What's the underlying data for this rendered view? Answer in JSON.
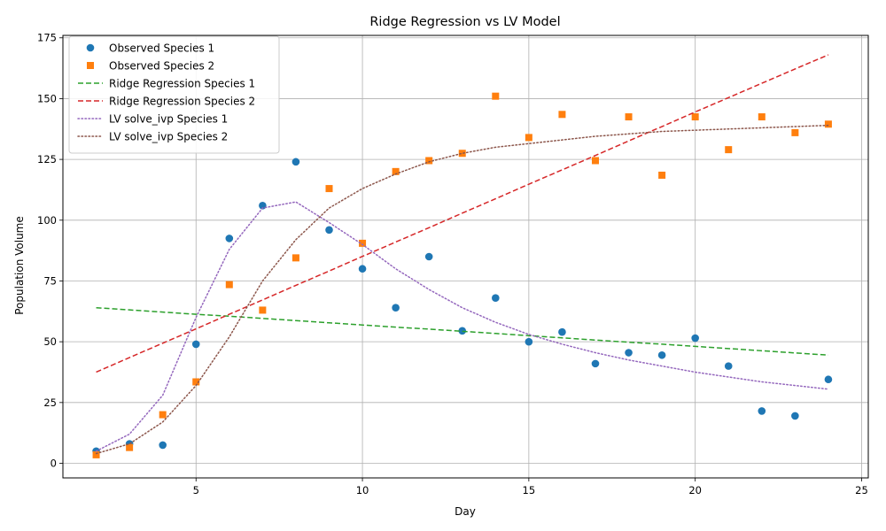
{
  "chart_data": {
    "type": "line",
    "title": "Ridge Regression vs LV Model",
    "xlabel": "Day",
    "ylabel": "Population Volume",
    "xlim": [
      1,
      25.2
    ],
    "ylim": [
      -6,
      176
    ],
    "x_ticks": [
      5,
      10,
      15,
      20,
      25
    ],
    "y_ticks": [
      0,
      25,
      50,
      75,
      100,
      125,
      150,
      175
    ],
    "grid": true,
    "legend_position": "top-left",
    "x": [
      2,
      3,
      4,
      5,
      6,
      7,
      8,
      9,
      10,
      11,
      12,
      13,
      14,
      15,
      16,
      17,
      18,
      19,
      20,
      21,
      22,
      23,
      24
    ],
    "series": [
      {
        "name": "Observed Species 1",
        "kind": "scatter",
        "marker": "circle",
        "color": "#1f77b4",
        "values": [
          5,
          8,
          7.5,
          49,
          92.5,
          106,
          124,
          96,
          80,
          64,
          85,
          54.5,
          68,
          50,
          54,
          41,
          45.5,
          44.5,
          51.5,
          40,
          21.5,
          19.5,
          34.5
        ]
      },
      {
        "name": "Observed Species 2",
        "kind": "scatter",
        "marker": "square",
        "color": "#ff7f0e",
        "values": [
          3.5,
          6.5,
          20,
          33.5,
          73.5,
          63,
          84.5,
          113,
          90.5,
          120,
          124.5,
          127.5,
          151,
          134,
          143.5,
          124.5,
          142.5,
          118.5,
          142.5,
          129,
          142.5,
          136,
          139.5
        ]
      },
      {
        "name": "Ridge Regression Species 1",
        "kind": "line",
        "dash": "dashed",
        "color": "#2ca02c",
        "values": [
          64,
          63.1,
          62.2,
          61.3,
          60.5,
          59.6,
          58.7,
          57.8,
          56.9,
          56,
          55.2,
          54.3,
          53.4,
          52.5,
          51.6,
          50.7,
          49.8,
          49,
          48.1,
          47.2,
          46.3,
          45.4,
          44.5
        ]
      },
      {
        "name": "Ridge Regression Species 2",
        "kind": "line",
        "dash": "dashed",
        "color": "#d62728",
        "values": [
          37.5,
          43.5,
          49.4,
          55.3,
          61.3,
          67.2,
          73.2,
          79.1,
          85.1,
          91,
          96.9,
          102.9,
          108.8,
          114.8,
          120.7,
          126.6,
          132.6,
          138.5,
          144.5,
          150.4,
          156.3,
          162.2,
          168
        ]
      },
      {
        "name": "LV solve_ivp Species 1",
        "kind": "line",
        "dash": "dotted",
        "color": "#9467bd",
        "values": [
          5,
          12,
          28,
          60,
          88,
          105,
          107.5,
          99,
          90,
          80,
          71.5,
          64,
          58,
          53,
          49,
          45.5,
          42.5,
          40,
          37.5,
          35.5,
          33.5,
          32,
          30.5
        ]
      },
      {
        "name": "LV solve_ivp Species 2",
        "kind": "line",
        "dash": "dotted",
        "color": "#8c564b",
        "values": [
          4,
          8,
          17,
          32,
          52,
          75,
          92,
          105,
          113,
          119,
          124,
          127.5,
          130,
          131.5,
          133,
          134.5,
          135.5,
          136.5,
          137,
          137.5,
          138,
          138.5,
          139
        ]
      }
    ]
  }
}
